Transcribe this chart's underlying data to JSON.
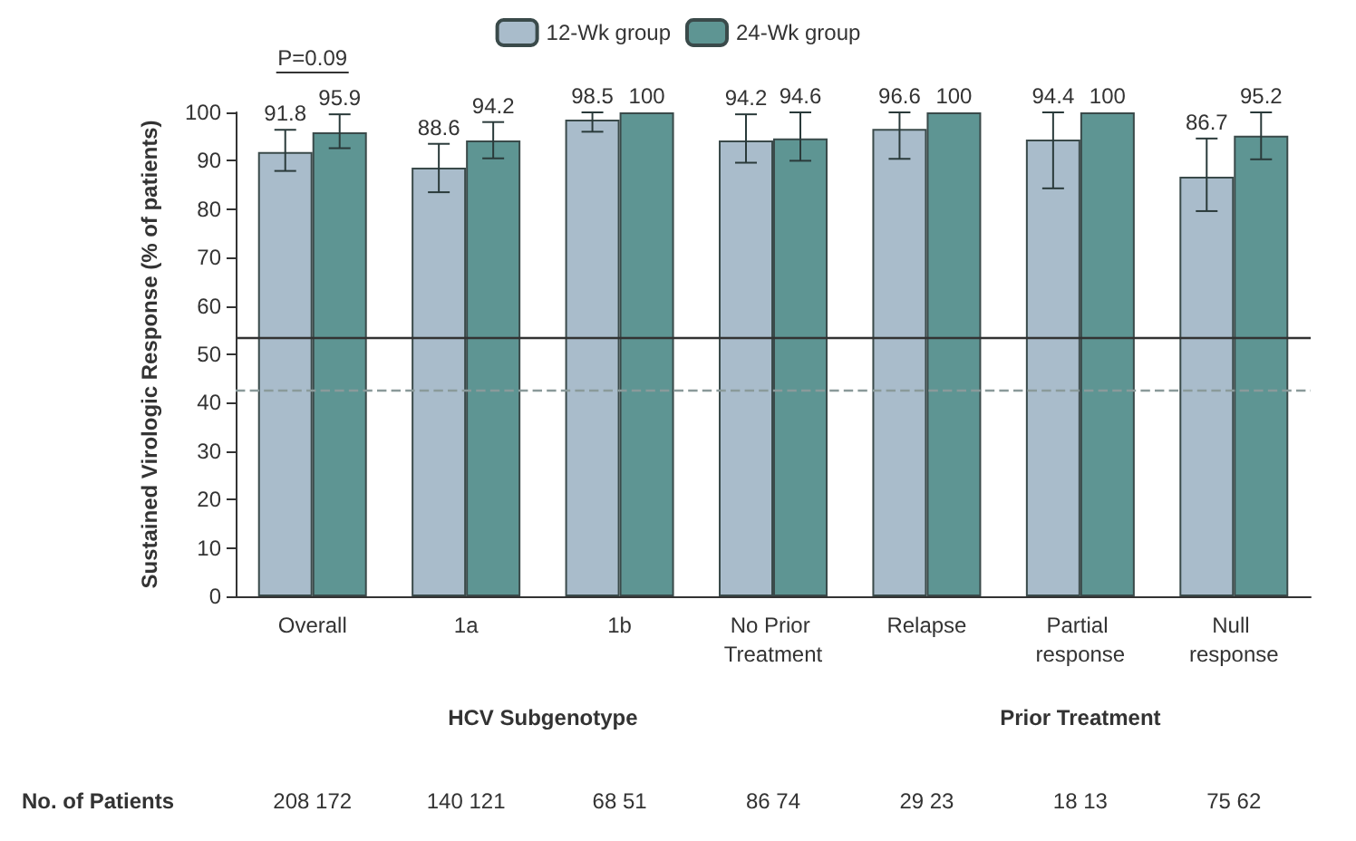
{
  "chart_data": {
    "type": "bar",
    "categories": [
      "Overall",
      "1a",
      "1b",
      "No Prior Treatment",
      "Relapse",
      "Partial response",
      "Null response"
    ],
    "series": [
      {
        "name": "12-Wk group",
        "color": "#a9bccb",
        "values": [
          91.8,
          88.6,
          98.5,
          94.2,
          96.6,
          94.4,
          86.7
        ],
        "errors": [
          [
            87.9,
            96.4
          ],
          [
            83.5,
            93.5
          ],
          [
            96,
            100
          ],
          [
            89.6,
            99.6
          ],
          [
            90.4,
            100
          ],
          [
            84.3,
            100
          ],
          [
            79.6,
            94.6
          ]
        ]
      },
      {
        "name": "24-Wk group",
        "color": "#5e9593",
        "values": [
          95.9,
          94.2,
          100,
          94.6,
          100,
          100,
          95.2
        ],
        "errors": [
          [
            92.6,
            99.6
          ],
          [
            90.5,
            98
          ],
          null,
          [
            90,
            100
          ],
          null,
          null,
          [
            90.3,
            100
          ]
        ]
      }
    ],
    "ylabel": "Sustained Virologic Response (% of patients)",
    "ylim": [
      0,
      100
    ],
    "yticks": [
      0,
      10,
      20,
      30,
      40,
      50,
      60,
      70,
      80,
      90,
      100
    ],
    "ref_lines": [
      {
        "axis": "y",
        "value": 53.5,
        "color": "#333333",
        "line_style": "solid"
      },
      {
        "axis": "y",
        "value": 42.7,
        "color": "#8a9a9a",
        "line_style": "dashed"
      }
    ],
    "data_labels": true,
    "grid": false,
    "legend": "top",
    "annotations": [
      "P=0.09",
      "HCV Subgenotype",
      "Prior Treatment",
      "No. of Patients",
      "208 172",
      "140 121",
      "68 51",
      "86 74",
      "29 23",
      "18 13",
      "75 62"
    ]
  }
}
